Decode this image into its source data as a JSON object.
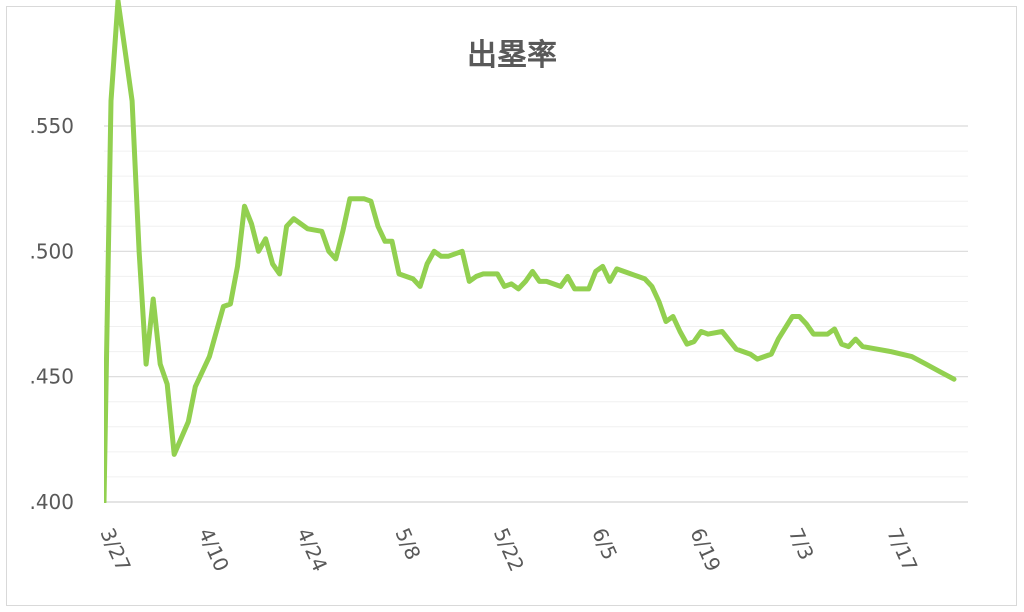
{
  "chart_data": {
    "type": "line",
    "title": "出塁率",
    "xlabel": "",
    "ylabel": "",
    "x_ticks": [
      "3/27",
      "4/10",
      "4/24",
      "5/8",
      "5/22",
      "6/5",
      "6/19",
      "7/3",
      "7/17"
    ],
    "y_ticks": [
      ".400",
      ".450",
      ".500",
      ".550"
    ],
    "ylim": [
      0.4,
      0.55
    ],
    "xlim": [
      "3/27",
      "7/28"
    ],
    "grid": true,
    "line_color": "#92d050",
    "series": [
      {
        "name": "",
        "points": [
          [
            "3/27",
            0.4
          ],
          [
            "3/28",
            0.56
          ],
          [
            "3/29",
            0.6
          ],
          [
            "3/30",
            0.58
          ],
          [
            "3/31",
            0.56
          ],
          [
            "4/1",
            0.5
          ],
          [
            "4/2",
            0.455
          ],
          [
            "4/3",
            0.481
          ],
          [
            "4/4",
            0.455
          ],
          [
            "4/5",
            0.447
          ],
          [
            "4/6",
            0.419
          ],
          [
            "4/8",
            0.432
          ],
          [
            "4/9",
            0.446
          ],
          [
            "4/11",
            0.458
          ],
          [
            "4/12",
            0.468
          ],
          [
            "4/13",
            0.478
          ],
          [
            "4/14",
            0.479
          ],
          [
            "4/15",
            0.494
          ],
          [
            "4/16",
            0.518
          ],
          [
            "4/17",
            0.511
          ],
          [
            "4/18",
            0.5
          ],
          [
            "4/19",
            0.505
          ],
          [
            "4/20",
            0.495
          ],
          [
            "4/21",
            0.491
          ],
          [
            "4/22",
            0.51
          ],
          [
            "4/23",
            0.513
          ],
          [
            "4/25",
            0.509
          ],
          [
            "4/27",
            0.508
          ],
          [
            "4/28",
            0.5
          ],
          [
            "4/29",
            0.497
          ],
          [
            "4/30",
            0.508
          ],
          [
            "5/1",
            0.521
          ],
          [
            "5/3",
            0.521
          ],
          [
            "5/4",
            0.52
          ],
          [
            "5/5",
            0.51
          ],
          [
            "5/6",
            0.504
          ],
          [
            "5/7",
            0.504
          ],
          [
            "5/8",
            0.491
          ],
          [
            "5/10",
            0.489
          ],
          [
            "5/11",
            0.486
          ],
          [
            "5/12",
            0.495
          ],
          [
            "5/13",
            0.5
          ],
          [
            "5/14",
            0.498
          ],
          [
            "5/15",
            0.498
          ],
          [
            "5/17",
            0.5
          ],
          [
            "5/18",
            0.488
          ],
          [
            "5/19",
            0.49
          ],
          [
            "5/20",
            0.491
          ],
          [
            "5/22",
            0.491
          ],
          [
            "5/23",
            0.486
          ],
          [
            "5/24",
            0.487
          ],
          [
            "5/25",
            0.485
          ],
          [
            "5/26",
            0.488
          ],
          [
            "5/27",
            0.492
          ],
          [
            "5/28",
            0.488
          ],
          [
            "5/29",
            0.488
          ],
          [
            "5/31",
            0.486
          ],
          [
            "6/1",
            0.49
          ],
          [
            "6/2",
            0.485
          ],
          [
            "6/4",
            0.485
          ],
          [
            "6/5",
            0.492
          ],
          [
            "6/6",
            0.494
          ],
          [
            "6/7",
            0.488
          ],
          [
            "6/8",
            0.493
          ],
          [
            "6/10",
            0.491
          ],
          [
            "6/11",
            0.49
          ],
          [
            "6/12",
            0.489
          ],
          [
            "6/13",
            0.486
          ],
          [
            "6/14",
            0.48
          ],
          [
            "6/15",
            0.472
          ],
          [
            "6/16",
            0.474
          ],
          [
            "6/17",
            0.468
          ],
          [
            "6/18",
            0.463
          ],
          [
            "6/19",
            0.464
          ],
          [
            "6/20",
            0.468
          ],
          [
            "6/21",
            0.467
          ],
          [
            "6/23",
            0.468
          ],
          [
            "6/25",
            0.461
          ],
          [
            "6/26",
            0.46
          ],
          [
            "6/27",
            0.459
          ],
          [
            "6/28",
            0.457
          ],
          [
            "6/29",
            0.458
          ],
          [
            "6/30",
            0.459
          ],
          [
            "7/1",
            0.465
          ],
          [
            "7/3",
            0.474
          ],
          [
            "7/4",
            0.474
          ],
          [
            "7/5",
            0.471
          ],
          [
            "7/6",
            0.467
          ],
          [
            "7/8",
            0.467
          ],
          [
            "7/9",
            0.469
          ],
          [
            "7/10",
            0.463
          ],
          [
            "7/11",
            0.462
          ],
          [
            "7/12",
            0.465
          ],
          [
            "7/13",
            0.462
          ],
          [
            "7/17",
            0.46
          ],
          [
            "7/20",
            0.458
          ],
          [
            "7/22",
            0.455
          ],
          [
            "7/24",
            0.452
          ],
          [
            "7/26",
            0.449
          ]
        ]
      }
    ]
  }
}
